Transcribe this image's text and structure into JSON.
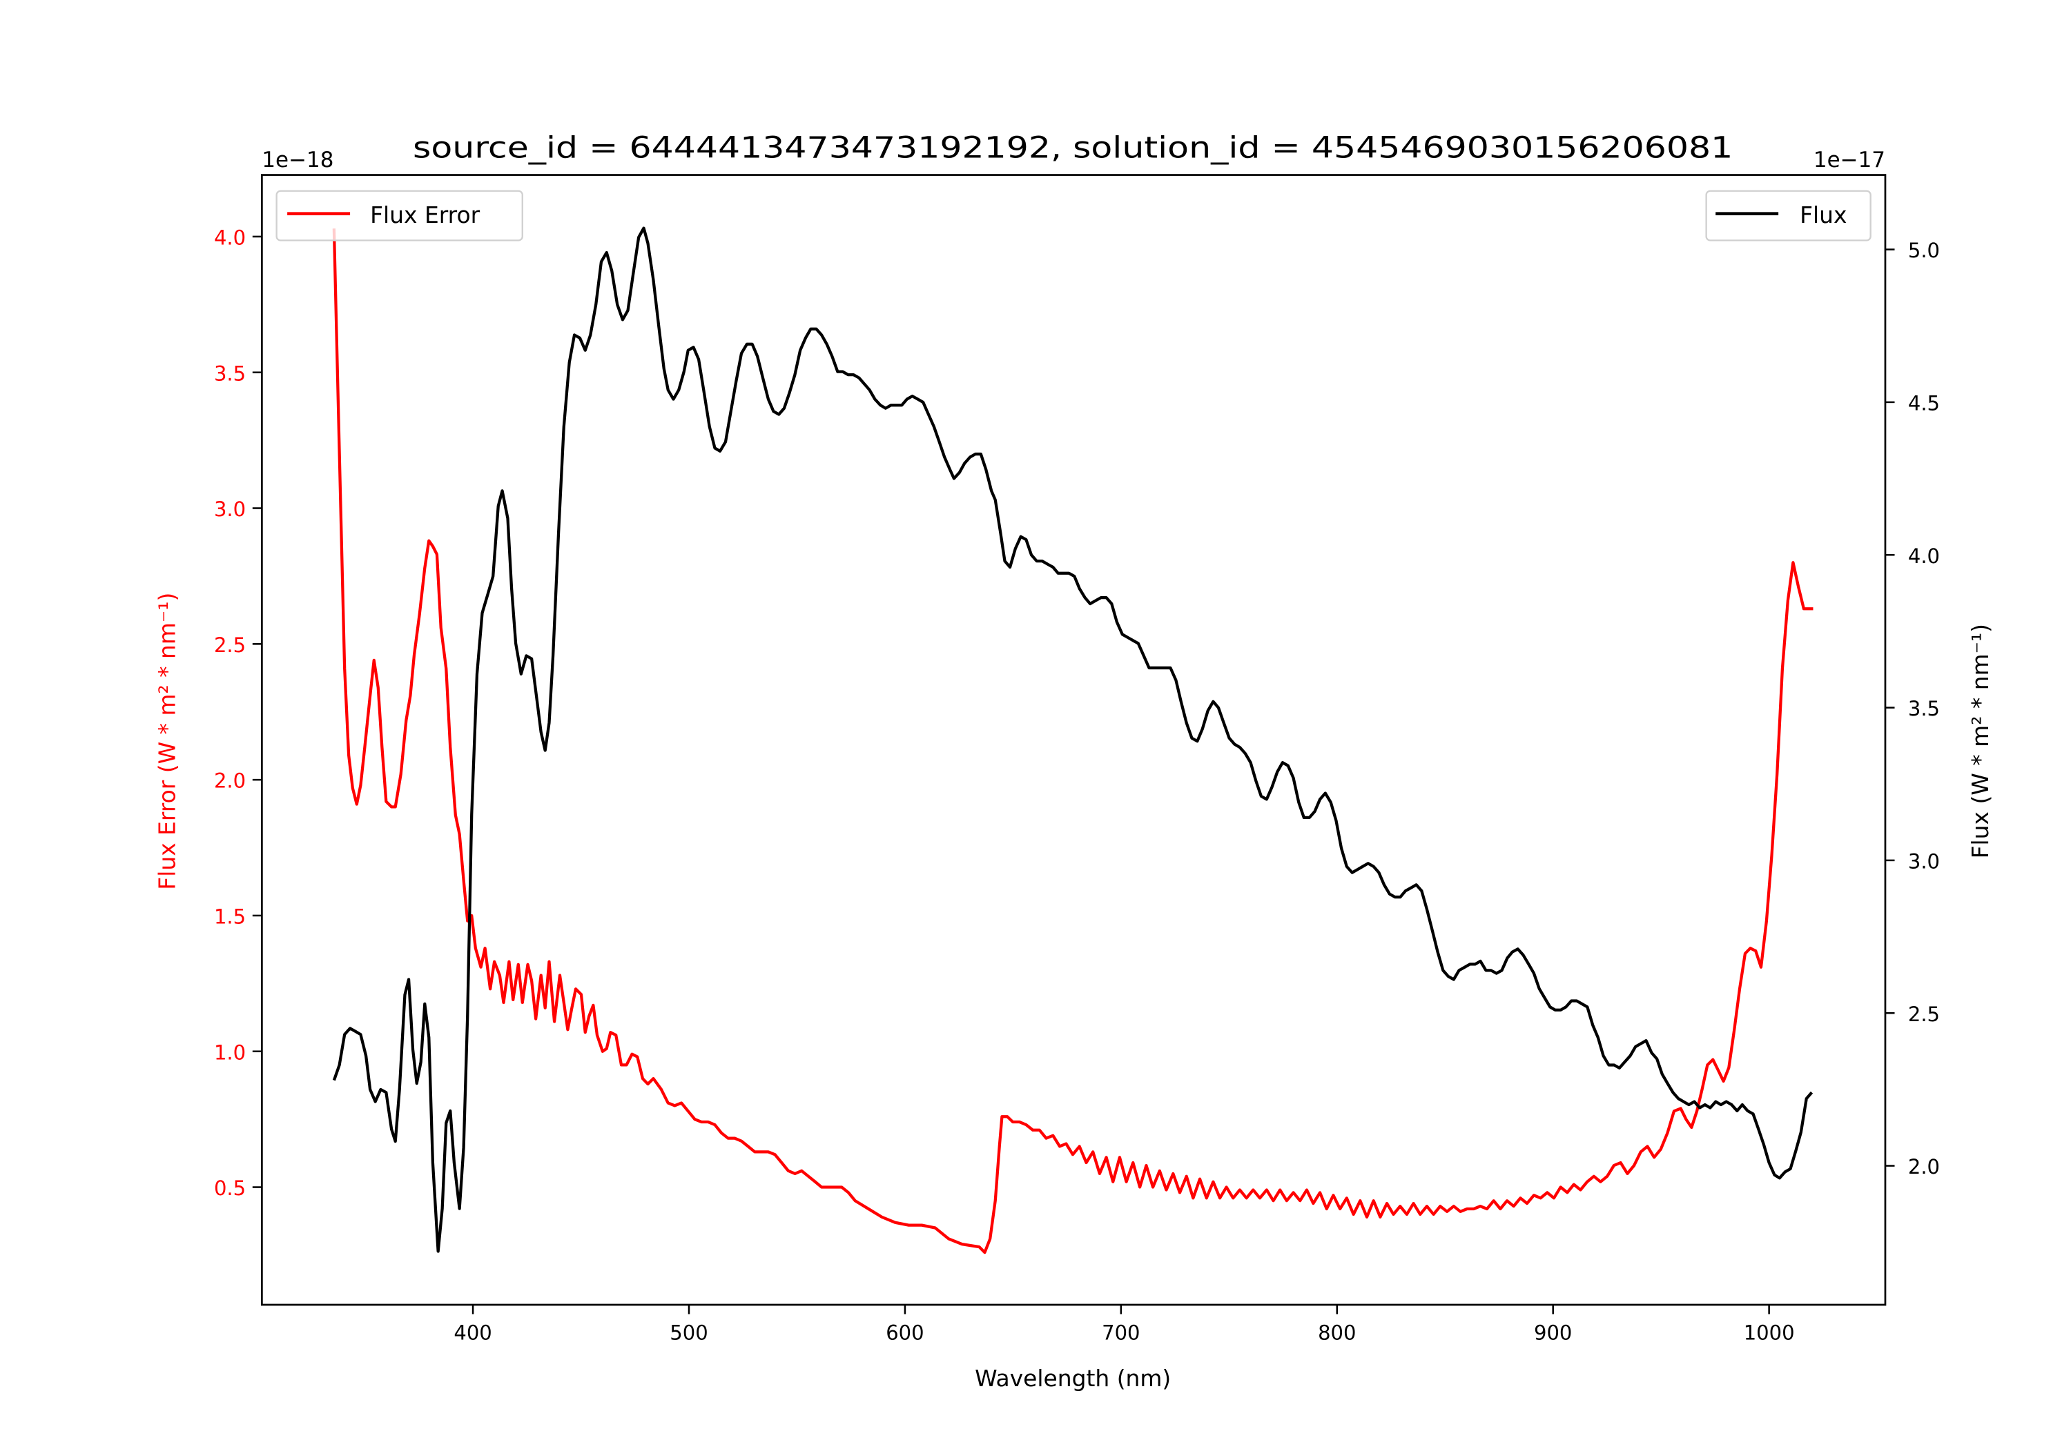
{
  "chart_data": {
    "type": "line",
    "title": "source_id = 6444413473473192192, solution_id = 4545469030156206081",
    "xlabel": "Wavelength (nm)",
    "ylabel_left": "Flux Error (W * m² * nm⁻¹)",
    "ylabel_right": "Flux (W * m² * nm⁻¹)",
    "offset_left": "1e−18",
    "offset_right": "1e−17",
    "xlim": [
      302.3,
      1053.8
    ],
    "ylim_left": [
      0.067,
      4.227
    ],
    "ylim_right": [
      1.545,
      5.244
    ],
    "xticks": [
      400,
      500,
      600,
      700,
      800,
      900,
      1000
    ],
    "xtick_labels": [
      "400",
      "500",
      "600",
      "700",
      "800",
      "900",
      "1000"
    ],
    "yticks_left": [
      0.5,
      1.0,
      1.5,
      2.0,
      2.5,
      3.0,
      3.5,
      4.0
    ],
    "ytick_labels_left": [
      "0.5",
      "1.0",
      "1.5",
      "2.0",
      "2.5",
      "3.0",
      "3.5",
      "4.0"
    ],
    "yticks_right": [
      2.0,
      2.5,
      3.0,
      3.5,
      4.0,
      4.5,
      5.0
    ],
    "ytick_labels_right": [
      "2.0",
      "2.5",
      "3.0",
      "3.5",
      "4.0",
      "4.5",
      "5.0"
    ],
    "grid": false,
    "colors": {
      "flux_error": "#ff0000",
      "flux": "#000000",
      "left_axis_text": "#ff0000"
    },
    "series": [
      {
        "name": "Flux Error",
        "axis": "left",
        "legend_position": "upper-left",
        "x": [
          335.7,
          338.8,
          340.6,
          342.5,
          344.3,
          346.2,
          348,
          349.9,
          352.4,
          354.2,
          356.1,
          357.9,
          359.8,
          362.3,
          364.1,
          366.6,
          369.1,
          371,
          372.8,
          375.3,
          377.7,
          379.6,
          381.4,
          383.3,
          385.2,
          387.6,
          389.5,
          391.9,
          393.8,
          395.7,
          397.5,
          399.4,
          401.2,
          403.7,
          405.6,
          408,
          409.9,
          412.4,
          414.2,
          416.7,
          418.6,
          421,
          422.9,
          425.4,
          427.2,
          429.1,
          431.5,
          433.4,
          435.3,
          437.7,
          440.2,
          442.1,
          443.9,
          445.8,
          447.6,
          450.1,
          452,
          453.8,
          455.7,
          457.5,
          460,
          461.9,
          463.7,
          466.2,
          468.7,
          471.1,
          473.6,
          476.1,
          478.6,
          481,
          483.5,
          487.2,
          490.3,
          493.4,
          496.5,
          499.6,
          502.7,
          505.8,
          508.9,
          512,
          515,
          518.1,
          521.2,
          524.3,
          527.4,
          530.5,
          533.6,
          536.7,
          539.8,
          542.9,
          546,
          549.1,
          552.2,
          555.3,
          558.4,
          561.4,
          564.5,
          567.6,
          570.7,
          573.8,
          576.9,
          583.1,
          589.3,
          595.5,
          601.7,
          607.8,
          614,
          620.2,
          626.4,
          634.4,
          636.9,
          639.4,
          641.8,
          643.7,
          644.9,
          647.4,
          649.9,
          653,
          656.1,
          659.2,
          662.3,
          665.4,
          668.5,
          671.6,
          674.6,
          677.7,
          680.8,
          683.9,
          687,
          690.1,
          693.2,
          696.3,
          699.4,
          702.5,
          705.6,
          708.7,
          711.7,
          714.8,
          717.9,
          721,
          724.1,
          727.2,
          730.3,
          733.4,
          736.5,
          739.6,
          742.7,
          745.8,
          748.8,
          751.9,
          755,
          758.1,
          761.2,
          764.3,
          767.4,
          770.5,
          773.6,
          776.7,
          779.8,
          782.9,
          786,
          789,
          792.1,
          795.2,
          798.3,
          801.4,
          804.5,
          807.6,
          810.7,
          813.8,
          816.9,
          820,
          823.1,
          826.1,
          829.2,
          832.3,
          835.4,
          838.5,
          841.6,
          844.7,
          847.8,
          850.9,
          854,
          857.1,
          860.2,
          863.3,
          866.3,
          869.4,
          872.5,
          875.6,
          878.7,
          881.8,
          884.9,
          888,
          891.1,
          894.2,
          897.3,
          900.4,
          903.5,
          906.6,
          909.6,
          912.7,
          915.8,
          918.9,
          922,
          925.1,
          928.2,
          931.3,
          934.4,
          937.5,
          940.6,
          943.7,
          946.8,
          949.9,
          953,
          956,
          959.1,
          961.6,
          964.1,
          966.6,
          969,
          971.5,
          974,
          976.5,
          978.9,
          981.4,
          983.9,
          986.4,
          988.9,
          991.3,
          993.8,
          996.3,
          998.8,
          1001.2,
          1003.7,
          1006.2,
          1008.7,
          1011.1,
          1013.6,
          1016.1,
          1018.5,
          1020.4
        ],
        "y": [
          4.03,
          3.0,
          2.41,
          2.09,
          1.97,
          1.91,
          1.98,
          2.12,
          2.31,
          2.44,
          2.34,
          2.12,
          1.92,
          1.9,
          1.9,
          2.02,
          2.22,
          2.31,
          2.46,
          2.61,
          2.78,
          2.88,
          2.86,
          2.83,
          2.56,
          2.41,
          2.12,
          1.87,
          1.8,
          1.63,
          1.48,
          1.5,
          1.38,
          1.31,
          1.38,
          1.23,
          1.33,
          1.28,
          1.18,
          1.33,
          1.19,
          1.32,
          1.18,
          1.32,
          1.26,
          1.12,
          1.28,
          1.16,
          1.33,
          1.11,
          1.28,
          1.18,
          1.08,
          1.16,
          1.23,
          1.21,
          1.07,
          1.13,
          1.17,
          1.06,
          1.0,
          1.01,
          1.07,
          1.06,
          0.95,
          0.95,
          0.99,
          0.98,
          0.9,
          0.88,
          0.9,
          0.86,
          0.81,
          0.8,
          0.81,
          0.78,
          0.75,
          0.74,
          0.74,
          0.73,
          0.7,
          0.68,
          0.68,
          0.67,
          0.65,
          0.63,
          0.63,
          0.63,
          0.62,
          0.59,
          0.56,
          0.55,
          0.56,
          0.54,
          0.52,
          0.5,
          0.5,
          0.5,
          0.5,
          0.48,
          0.45,
          0.42,
          0.39,
          0.37,
          0.36,
          0.36,
          0.35,
          0.31,
          0.29,
          0.28,
          0.26,
          0.31,
          0.45,
          0.65,
          0.76,
          0.76,
          0.74,
          0.74,
          0.73,
          0.71,
          0.71,
          0.68,
          0.69,
          0.65,
          0.66,
          0.62,
          0.65,
          0.59,
          0.63,
          0.55,
          0.61,
          0.52,
          0.61,
          0.52,
          0.59,
          0.5,
          0.58,
          0.5,
          0.56,
          0.49,
          0.55,
          0.48,
          0.54,
          0.46,
          0.53,
          0.46,
          0.52,
          0.46,
          0.5,
          0.46,
          0.49,
          0.46,
          0.49,
          0.46,
          0.49,
          0.45,
          0.49,
          0.45,
          0.48,
          0.45,
          0.49,
          0.44,
          0.48,
          0.42,
          0.47,
          0.42,
          0.46,
          0.4,
          0.45,
          0.39,
          0.45,
          0.39,
          0.44,
          0.4,
          0.43,
          0.4,
          0.44,
          0.4,
          0.43,
          0.4,
          0.43,
          0.41,
          0.43,
          0.41,
          0.42,
          0.42,
          0.43,
          0.42,
          0.45,
          0.42,
          0.45,
          0.43,
          0.46,
          0.44,
          0.47,
          0.46,
          0.48,
          0.46,
          0.5,
          0.48,
          0.51,
          0.49,
          0.52,
          0.54,
          0.52,
          0.54,
          0.58,
          0.59,
          0.55,
          0.58,
          0.63,
          0.65,
          0.61,
          0.64,
          0.7,
          0.78,
          0.79,
          0.75,
          0.72,
          0.78,
          0.86,
          0.95,
          0.97,
          0.93,
          0.89,
          0.94,
          1.08,
          1.23,
          1.36,
          1.38,
          1.37,
          1.31,
          1.48,
          1.72,
          2.02,
          2.41,
          2.66,
          2.8,
          2.71,
          2.63,
          2.63,
          2.63
        ]
      },
      {
        "name": "Flux",
        "axis": "right",
        "legend_position": "upper-right",
        "x": [
          335.7,
          338.2,
          340.6,
          343.1,
          345.6,
          348,
          350.5,
          352.4,
          354.8,
          357.3,
          359.8,
          362.3,
          364.1,
          366,
          368.5,
          370.3,
          372.2,
          374,
          375.9,
          377.7,
          379.6,
          381.4,
          383.9,
          385.8,
          387.6,
          389.5,
          391.3,
          393.8,
          395.7,
          397.5,
          399.4,
          401.9,
          404.3,
          406.8,
          409.3,
          411.7,
          413.6,
          416.1,
          417.9,
          419.8,
          422.3,
          424.7,
          427.2,
          429.7,
          431.5,
          433.4,
          435.3,
          437.1,
          439.6,
          442.1,
          444.6,
          447,
          449.5,
          452,
          454.4,
          456.9,
          459.4,
          461.9,
          464.3,
          466.8,
          469.3,
          471.7,
          474.2,
          476.7,
          479.1,
          481,
          483.5,
          486,
          488.4,
          490.3,
          492.8,
          495.3,
          497.7,
          499.6,
          502.1,
          504.5,
          507,
          509.5,
          512,
          514.4,
          516.9,
          519.4,
          521.9,
          524.3,
          526.8,
          529.3,
          531.7,
          534.2,
          536.7,
          539.1,
          541.6,
          544.1,
          546.5,
          549,
          551.5,
          554,
          556.4,
          558.9,
          561.4,
          563.8,
          566.3,
          568.8,
          571.2,
          573.7,
          576.2,
          578.7,
          581.1,
          583.6,
          586.1,
          588.6,
          591,
          593.5,
          596,
          598.5,
          600.9,
          603.4,
          605.9,
          608.4,
          610.9,
          613.4,
          615.9,
          618.3,
          620.8,
          622.7,
          625.2,
          627.6,
          630.1,
          632.6,
          635.1,
          637.5,
          640,
          641.8,
          644.3,
          646.2,
          648.6,
          651.1,
          653.6,
          656.1,
          658.5,
          661,
          663.5,
          666,
          668.5,
          670.9,
          673.4,
          675.9,
          678.4,
          680.8,
          683.3,
          685.7,
          688.2,
          690.7,
          693.2,
          695.7,
          698.1,
          700.6,
          703.1,
          705.6,
          708,
          710.5,
          713,
          715.5,
          717.9,
          720.4,
          722.9,
          725.4,
          727.8,
          730.3,
          732.8,
          735.3,
          737.7,
          740.2,
          742.7,
          745.1,
          747.6,
          750.1,
          752.6,
          755,
          757.5,
          760,
          762.5,
          764.9,
          767.4,
          769.9,
          772.4,
          774.8,
          777.3,
          779.8,
          782.3,
          784.7,
          787.2,
          789.7,
          792.1,
          794.6,
          797.1,
          799.6,
          802,
          804.5,
          807,
          809.5,
          811.9,
          814.4,
          816.9,
          819.4,
          821.8,
          824.3,
          826.8,
          829.3,
          831.7,
          834.2,
          836.7,
          839.2,
          841.6,
          844.1,
          846.6,
          849.1,
          851.5,
          854,
          856.5,
          859,
          861.5,
          863.9,
          866.4,
          868.9,
          871.3,
          873.8,
          876.3,
          878.8,
          881.2,
          883.7,
          886.2,
          888.7,
          891.1,
          893.6,
          896.1,
          898.6,
          901,
          903.5,
          906,
          908.5,
          910.9,
          913.4,
          915.9,
          918.4,
          920.8,
          923.3,
          925.8,
          928.3,
          930.7,
          933.2,
          935.7,
          938.2,
          940.6,
          943.1,
          945.6,
          948.1,
          950.5,
          953,
          955.5,
          958,
          960.4,
          962.9,
          965.4,
          967.9,
          970.3,
          972.8,
          975.3,
          977.7,
          980.2,
          982.7,
          985.2,
          987.6,
          990.1,
          992.6,
          995.1,
          997.5,
          1000,
          1002.5,
          1004.9,
          1007.4,
          1009.9,
          1012.4,
          1014.8,
          1017.3,
          1019.8
        ],
        "y": [
          2.28,
          2.33,
          2.43,
          2.45,
          2.44,
          2.43,
          2.36,
          2.25,
          2.21,
          2.25,
          2.24,
          2.12,
          2.08,
          2.25,
          2.56,
          2.61,
          2.38,
          2.27,
          2.34,
          2.53,
          2.42,
          2.01,
          1.72,
          1.86,
          2.14,
          2.18,
          2.01,
          1.86,
          2.06,
          2.49,
          3.15,
          3.61,
          3.81,
          3.87,
          3.93,
          4.16,
          4.21,
          4.12,
          3.89,
          3.71,
          3.61,
          3.67,
          3.66,
          3.52,
          3.42,
          3.36,
          3.45,
          3.67,
          4.07,
          4.42,
          4.63,
          4.72,
          4.71,
          4.67,
          4.72,
          4.82,
          4.96,
          4.99,
          4.93,
          4.82,
          4.77,
          4.8,
          4.92,
          5.04,
          5.07,
          5.02,
          4.9,
          4.75,
          4.61,
          4.54,
          4.51,
          4.54,
          4.6,
          4.67,
          4.68,
          4.64,
          4.53,
          4.42,
          4.35,
          4.34,
          4.37,
          4.47,
          4.57,
          4.66,
          4.69,
          4.69,
          4.65,
          4.58,
          4.51,
          4.47,
          4.46,
          4.48,
          4.53,
          4.59,
          4.67,
          4.71,
          4.74,
          4.74,
          4.72,
          4.69,
          4.65,
          4.6,
          4.6,
          4.59,
          4.59,
          4.58,
          4.56,
          4.54,
          4.51,
          4.49,
          4.48,
          4.49,
          4.49,
          4.49,
          4.51,
          4.52,
          4.51,
          4.5,
          4.46,
          4.42,
          4.37,
          4.32,
          4.28,
          4.25,
          4.27,
          4.3,
          4.32,
          4.33,
          4.33,
          4.28,
          4.21,
          4.18,
          4.07,
          3.98,
          3.96,
          4.02,
          4.06,
          4.05,
          4.0,
          3.98,
          3.98,
          3.97,
          3.96,
          3.94,
          3.94,
          3.94,
          3.93,
          3.89,
          3.86,
          3.84,
          3.85,
          3.86,
          3.86,
          3.84,
          3.78,
          3.74,
          3.73,
          3.72,
          3.71,
          3.67,
          3.63,
          3.63,
          3.63,
          3.63,
          3.63,
          3.59,
          3.52,
          3.45,
          3.4,
          3.39,
          3.43,
          3.49,
          3.52,
          3.5,
          3.45,
          3.4,
          3.38,
          3.37,
          3.35,
          3.32,
          3.26,
          3.21,
          3.2,
          3.24,
          3.29,
          3.32,
          3.31,
          3.27,
          3.19,
          3.14,
          3.14,
          3.16,
          3.2,
          3.22,
          3.19,
          3.13,
          3.04,
          2.98,
          2.96,
          2.97,
          2.98,
          2.99,
          2.98,
          2.96,
          2.92,
          2.89,
          2.88,
          2.88,
          2.9,
          2.91,
          2.92,
          2.9,
          2.84,
          2.77,
          2.7,
          2.64,
          2.62,
          2.61,
          2.64,
          2.65,
          2.66,
          2.66,
          2.67,
          2.64,
          2.64,
          2.63,
          2.64,
          2.68,
          2.7,
          2.71,
          2.69,
          2.66,
          2.63,
          2.58,
          2.55,
          2.52,
          2.51,
          2.51,
          2.52,
          2.54,
          2.54,
          2.53,
          2.52,
          2.46,
          2.42,
          2.36,
          2.33,
          2.33,
          2.32,
          2.34,
          2.36,
          2.39,
          2.4,
          2.41,
          2.37,
          2.35,
          2.3,
          2.27,
          2.24,
          2.22,
          2.21,
          2.2,
          2.21,
          2.19,
          2.2,
          2.19,
          2.21,
          2.2,
          2.21,
          2.2,
          2.18,
          2.2,
          2.18,
          2.17,
          2.12,
          2.07,
          2.01,
          1.97,
          1.96,
          1.98,
          1.99,
          2.05,
          2.11,
          2.22,
          2.24
        ]
      }
    ]
  }
}
